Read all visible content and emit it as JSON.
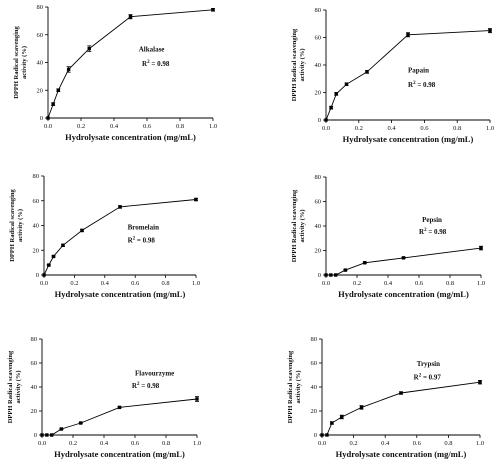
{
  "chart_data": [
    {
      "type": "line",
      "title": "Alkalase",
      "r2_label": "R",
      "r2_sup": "2",
      "r2_value": " = 0.98",
      "xlabel": "Hydrolysate concentration (mg/mL)",
      "ylabel_lines": [
        "DPPH Radical scavenging",
        "activity (%)"
      ],
      "xlim": [
        0,
        1.0
      ],
      "ylim": [
        0,
        80
      ],
      "xticks": [
        "0.0",
        "0.2",
        "0.4",
        "0.6",
        "0.8",
        "1.0"
      ],
      "yticks": [
        "0",
        "20",
        "40",
        "60",
        "80"
      ],
      "x": [
        0,
        0.03125,
        0.0625,
        0.125,
        0.25,
        0.5,
        1.0
      ],
      "y": [
        0,
        10,
        20,
        35,
        50,
        73,
        78
      ],
      "err": [
        0,
        1,
        1,
        2,
        2,
        1.5,
        1
      ]
    },
    {
      "type": "line",
      "title": "Papain",
      "r2_label": "R",
      "r2_sup": "2",
      "r2_value": " = 0.98",
      "xlabel": "Hydrolysate concentration (mg/mL)",
      "ylabel_lines": [
        "DPPH Radical scavenging",
        "activity (%)"
      ],
      "xlim": [
        0,
        1.0
      ],
      "ylim": [
        0,
        80
      ],
      "xticks": [
        "0.0",
        "0.2",
        "0.4",
        "0.6",
        "0.8",
        "1.0"
      ],
      "yticks": [
        "0",
        "20",
        "40",
        "60",
        "80"
      ],
      "x": [
        0,
        0.03125,
        0.0625,
        0.125,
        0.25,
        0.5,
        1.0
      ],
      "y": [
        0,
        9,
        19,
        26,
        35,
        62,
        65
      ],
      "err": [
        0,
        1,
        1,
        1,
        1,
        1.5,
        1.5
      ]
    },
    {
      "type": "line",
      "title": "Bromelain",
      "r2_label": "R",
      "r2_sup": "2",
      "r2_value": " = 0.98",
      "xlabel": "Hydrolysate concentration (mg/mL)",
      "ylabel_lines": [
        "DPPH Radical scavenging",
        "activity (%)"
      ],
      "xlim": [
        0,
        1.0
      ],
      "ylim": [
        0,
        80
      ],
      "xticks": [
        "0.0",
        "0.2",
        "0.4",
        "0.6",
        "0.8",
        "1.0"
      ],
      "yticks": [
        "0",
        "20",
        "40",
        "60",
        "80"
      ],
      "x": [
        0,
        0.03125,
        0.0625,
        0.125,
        0.25,
        0.5,
        1.0
      ],
      "y": [
        0,
        8,
        15,
        24,
        36,
        55,
        61
      ],
      "err": [
        0,
        0.5,
        0.5,
        1,
        1,
        1,
        1
      ]
    },
    {
      "type": "line",
      "title": "Pepsin",
      "r2_label": "R",
      "r2_sup": "2",
      "r2_value": " = 0.98",
      "xlabel": "Hydrolysate concentration (mg/mL)",
      "ylabel_lines": [
        "DPPH Radical scavenging",
        "activity (%)"
      ],
      "xlim": [
        0,
        1.0
      ],
      "ylim": [
        0,
        80
      ],
      "xticks": [
        "0.0",
        "0.2",
        "0.4",
        "0.6",
        "0.8",
        "1.0"
      ],
      "yticks": [
        "0",
        "20",
        "40",
        "60",
        "80"
      ],
      "x": [
        0,
        0.03125,
        0.0625,
        0.125,
        0.25,
        0.5,
        1.0
      ],
      "y": [
        0,
        0,
        0,
        4,
        10,
        14,
        22
      ],
      "err": [
        0,
        0,
        0,
        0.5,
        0.5,
        0.5,
        1.5
      ]
    },
    {
      "type": "line",
      "title": "Flavourzyme",
      "r2_label": "R",
      "r2_sup": "2",
      "r2_value": " = 0.98",
      "xlabel": "Hydrolysate concentration (mg/mL)",
      "ylabel_lines": [
        "DPPH Radical scavenging",
        "activity (%)"
      ],
      "xlim": [
        0,
        1.0
      ],
      "ylim": [
        0,
        80
      ],
      "xticks": [
        "0.0",
        "0.2",
        "0.4",
        "0.6",
        "0.8",
        "1.0"
      ],
      "yticks": [
        "0",
        "20",
        "40",
        "60",
        "80"
      ],
      "x": [
        0,
        0.03125,
        0.0625,
        0.125,
        0.25,
        0.5,
        1.0
      ],
      "y": [
        0,
        0,
        0,
        5,
        10,
        23,
        30
      ],
      "err": [
        0,
        0,
        0,
        0.5,
        0.5,
        0.5,
        2
      ]
    },
    {
      "type": "line",
      "title": "Trypsin",
      "r2_label": "R",
      "r2_sup": "2",
      "r2_value": " = 0.97",
      "xlabel": "Hydrolysate concentration (mg/mL)",
      "ylabel_lines": [
        "DPPH Radical scavenging",
        "activity (%)"
      ],
      "xlim": [
        0,
        1.0
      ],
      "ylim": [
        0,
        80
      ],
      "xticks": [
        "0.0",
        "0.2",
        "0.4",
        "0.6",
        "0.8",
        "1.0"
      ],
      "yticks": [
        "0",
        "20",
        "40",
        "60",
        "80"
      ],
      "x": [
        0,
        0.03125,
        0.0625,
        0.125,
        0.25,
        0.5,
        1.0
      ],
      "y": [
        0,
        0,
        10,
        15,
        23,
        35,
        44
      ],
      "err": [
        0,
        0,
        1,
        1.5,
        1.5,
        1,
        1.5
      ]
    }
  ]
}
